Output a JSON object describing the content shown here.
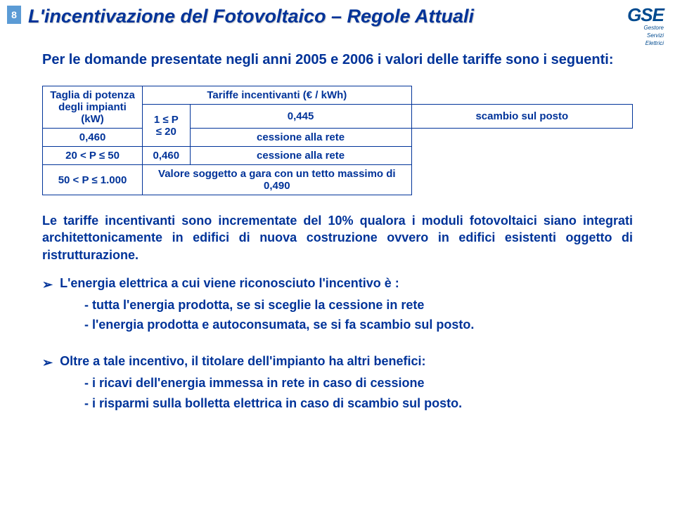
{
  "page_number": "8",
  "title": "L'incentivazione del Fotovoltaico – Regole Attuali",
  "logo": {
    "main": "GSE",
    "sub1": "Gestore",
    "sub2": "Servizi",
    "sub3": "Elettrici"
  },
  "intro": "Per le domande presentate negli anni 2005 e 2006 i valori delle tariffe sono i seguenti:",
  "table": {
    "h1": "Taglia di potenza degli impianti (kW)",
    "h2": "Tariffe incentivanti (€ / kWh)",
    "rows": [
      {
        "range": "1 ≤ P ≤ 20",
        "v1": "0,445",
        "d1": "scambio sul posto",
        "v2": "0,460",
        "d2": "cessione alla rete"
      },
      {
        "range": "20 < P ≤ 50",
        "v": "0,460",
        "d": "cessione alla rete"
      },
      {
        "range": "50 < P ≤ 1.000",
        "d": "Valore soggetto a gara con un tetto massimo di 0,490"
      }
    ]
  },
  "para1": "Le tariffe incentivanti sono incrementate del 10% qualora i moduli fotovoltaici siano integrati architettonicamente in edifici di nuova costruzione ovvero in edifici esistenti oggetto di ristrutturazione.",
  "bullet1": {
    "lead": "L'energia elettrica a cui viene riconosciuto l'incentivo è :",
    "sub1": "- tutta l'energia prodotta, se si sceglie la cessione in rete",
    "sub2": "- l'energia prodotta e autoconsumata, se si fa scambio sul posto."
  },
  "bullet2": {
    "lead": "Oltre a tale incentivo, il titolare dell'impianto ha altri benefici:",
    "sub1": "- i ricavi dell'energia immessa in rete in caso di cessione",
    "sub2": "- i risparmi sulla bolletta elettrica in caso di scambio sul posto."
  }
}
